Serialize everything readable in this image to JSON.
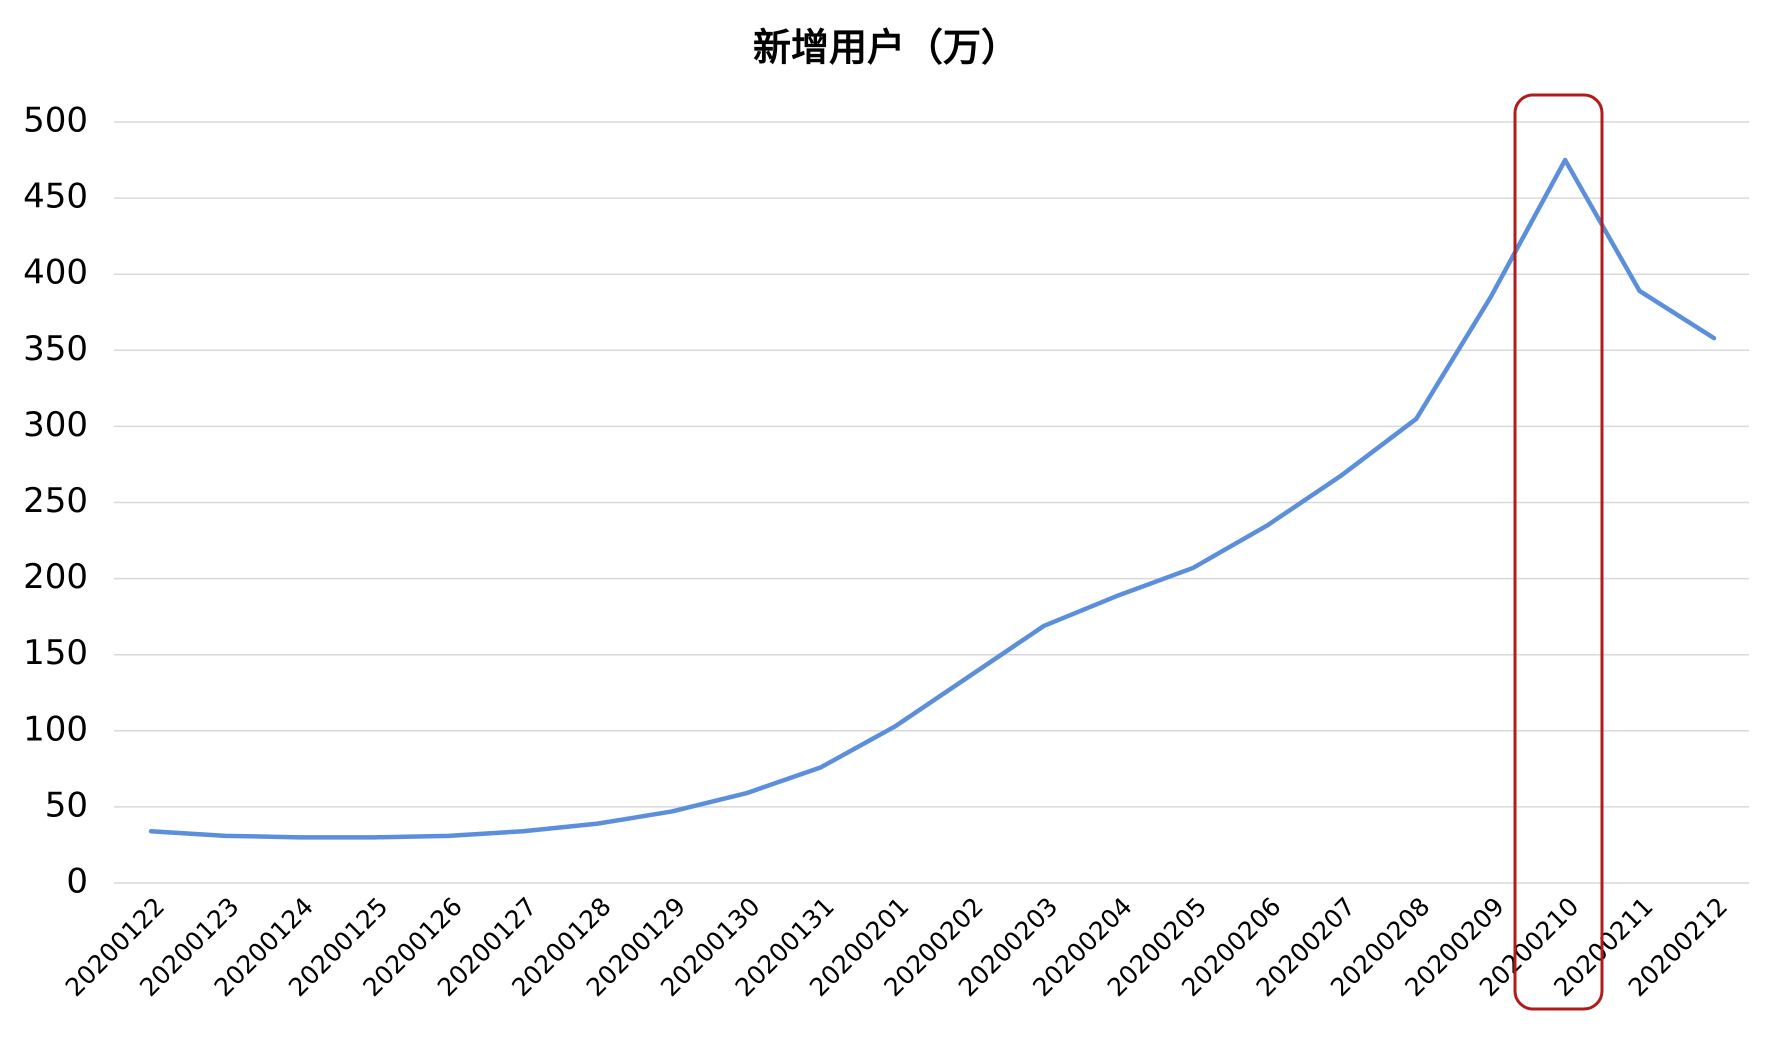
{
  "chart_data": {
    "type": "line",
    "title": "新增用户（万）",
    "categories": [
      "20200122",
      "20200123",
      "20200124",
      "20200125",
      "20200126",
      "20200127",
      "20200128",
      "20200129",
      "20200130",
      "20200131",
      "20200201",
      "20200202",
      "20200203",
      "20200204",
      "20200205",
      "20200206",
      "20200207",
      "20200208",
      "20200209",
      "20200210",
      "20200211",
      "20200212"
    ],
    "values": [
      34,
      31,
      30,
      30,
      31,
      34,
      39,
      47,
      59,
      76,
      103,
      136,
      169,
      189,
      207,
      235,
      268,
      305,
      385,
      475,
      389,
      358
    ],
    "color": "#5b8fdc",
    "ylim": [
      0,
      500
    ],
    "yticks": [
      0,
      50,
      100,
      150,
      200,
      250,
      300,
      350,
      400,
      450,
      500
    ],
    "grid": true
  }
}
